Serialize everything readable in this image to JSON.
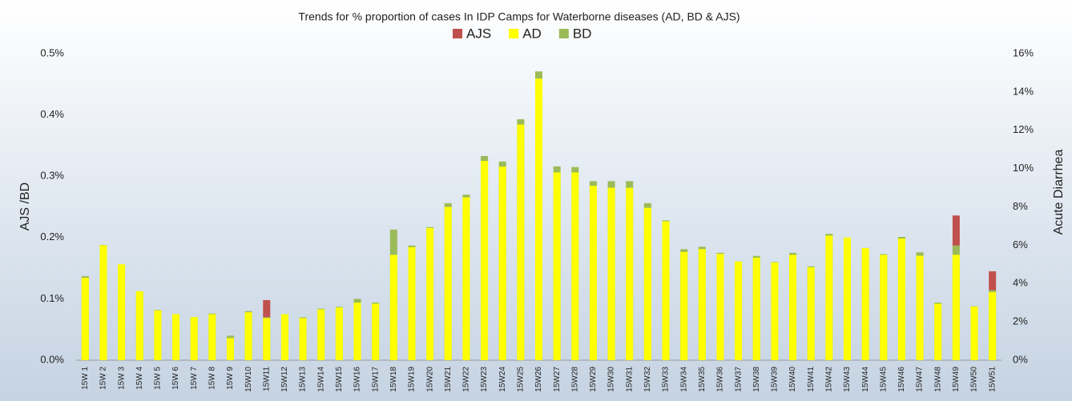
{
  "chart_data": {
    "type": "bar",
    "title": "Trends for % proportion of cases In IDP Camps for Waterborne diseases (AD, BD & AJS)",
    "ylabel": "AJS /BD",
    "y2label": "Acute Diarrhea",
    "categories": [
      "15W 1",
      "15W 2",
      "15W 3",
      "15W 4",
      "15W 5",
      "15W 6",
      "15W 7",
      "15W 8",
      "15W 9",
      "15W10",
      "15W11",
      "15W12",
      "15W13",
      "15W14",
      "15W15",
      "15W16",
      "15W17",
      "15W18",
      "15W19",
      "15W20",
      "15W21",
      "15W22",
      "15W23",
      "15W24",
      "15W25",
      "15W26",
      "15W27",
      "15W28",
      "15W29",
      "15W30",
      "15W31",
      "15W32",
      "15W33",
      "15W34",
      "15W35",
      "15W36",
      "15W37",
      "15W38",
      "15W39",
      "15W40",
      "15W41",
      "15W42",
      "15W43",
      "15W44",
      "15W45",
      "15W46",
      "15W47",
      "15W48",
      "15W49",
      "15W50",
      "15W51"
    ],
    "series": [
      {
        "name": "AJS",
        "color": "#c0504d",
        "stacked_on": "BD",
        "values": [
          0,
          0,
          0,
          0,
          0,
          0,
          0,
          0,
          0,
          0,
          0.028,
          0,
          0,
          0,
          0,
          0,
          0,
          0,
          0,
          0,
          0,
          0,
          0,
          0,
          0,
          0,
          0,
          0,
          0,
          0,
          0,
          0,
          0,
          0,
          0,
          0,
          0,
          0,
          0,
          0,
          0,
          0,
          0,
          0,
          0,
          0,
          0,
          0,
          0.049,
          0,
          0.031
        ]
      },
      {
        "name": "AD",
        "color": "#ffff00",
        "axis": "y2",
        "values": [
          4.3,
          6.0,
          5.0,
          3.6,
          2.6,
          2.4,
          2.25,
          2.4,
          1.15,
          2.5,
          2.2,
          2.4,
          2.2,
          2.65,
          2.75,
          3.0,
          2.95,
          5.5,
          5.9,
          6.9,
          8.0,
          8.5,
          10.4,
          10.1,
          12.3,
          14.7,
          9.8,
          9.8,
          9.1,
          9.0,
          9.0,
          7.95,
          7.25,
          5.65,
          5.8,
          5.55,
          5.15,
          5.35,
          5.1,
          5.5,
          4.85,
          6.5,
          6.4,
          5.85,
          5.5,
          6.35,
          5.45,
          2.95,
          5.5,
          2.8,
          3.55
        ]
      },
      {
        "name": "BD",
        "color": "#9bbb59",
        "values": [
          0.137,
          0.188,
          0.155,
          0.112,
          0.082,
          0.075,
          0.07,
          0.076,
          0.04,
          0.08,
          0.07,
          0.075,
          0.07,
          0.084,
          0.087,
          0.1,
          0.094,
          0.213,
          0.187,
          0.217,
          0.256,
          0.27,
          0.333,
          0.324,
          0.393,
          0.471,
          0.316,
          0.315,
          0.292,
          0.292,
          0.292,
          0.256,
          0.228,
          0.181,
          0.185,
          0.175,
          0.161,
          0.17,
          0.16,
          0.175,
          0.153,
          0.206,
          0.2,
          0.183,
          0.173,
          0.201,
          0.176,
          0.094,
          0.187,
          0.088,
          0.114
        ]
      }
    ],
    "ylim": [
      0,
      0.5
    ],
    "yticks": [
      {
        "value": 0,
        "label": "0.0%"
      },
      {
        "value": 0.1,
        "label": "0.1%"
      },
      {
        "value": 0.2,
        "label": "0.2%"
      },
      {
        "value": 0.3,
        "label": "0.3%"
      },
      {
        "value": 0.4,
        "label": "0.4%"
      },
      {
        "value": 0.5,
        "label": "0.5%"
      }
    ],
    "y2lim": [
      0,
      16
    ],
    "y2ticks": [
      {
        "value": 0,
        "label": "0%"
      },
      {
        "value": 2,
        "label": "2%"
      },
      {
        "value": 4,
        "label": "4%"
      },
      {
        "value": 6,
        "label": "6%"
      },
      {
        "value": 8,
        "label": "8%"
      },
      {
        "value": 10,
        "label": "10%"
      },
      {
        "value": 12,
        "label": "12%"
      },
      {
        "value": 14,
        "label": "14%"
      },
      {
        "value": 16,
        "label": "16%"
      }
    ],
    "legend": "top"
  }
}
